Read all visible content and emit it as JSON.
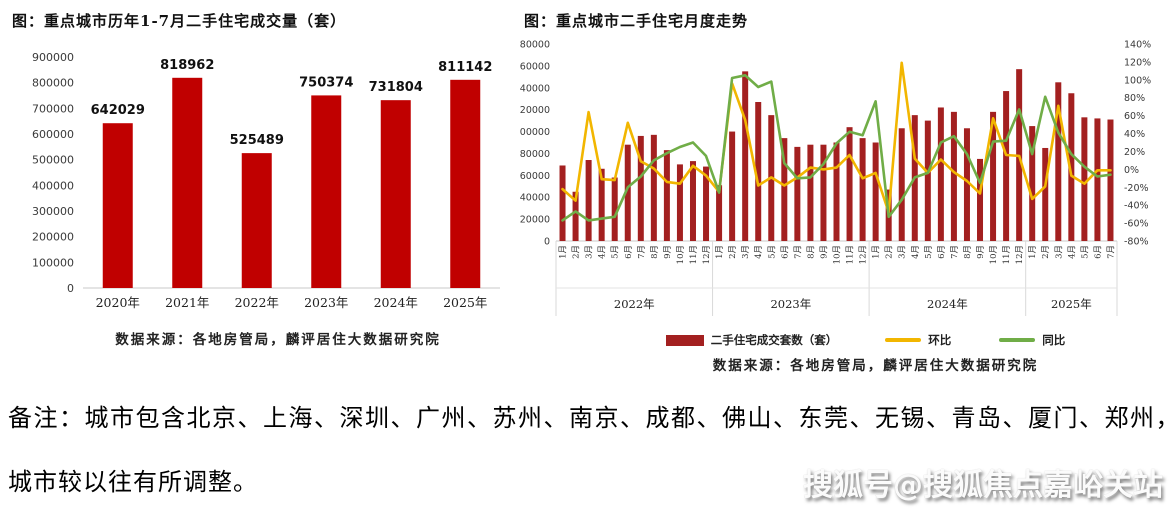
{
  "watermark": {
    "text": "搜狐号@搜狐焦点嘉峪关站"
  },
  "notes": {
    "line1": "备注：城市包含北京、上海、深圳、广州、苏州、南京、成都、佛山、东莞、无锡、青岛、厦门、郑州，",
    "line2": "城市较以往有所调整。"
  },
  "chart_data": [
    {
      "type": "bar",
      "title": "图：重点城市历年1-7月二手住宅成交量（套）",
      "source": "数据来源：各地房管局，麟评居住大数据研究院",
      "categories": [
        "2020年",
        "2021年",
        "2022年",
        "2023年",
        "2024年",
        "2025年"
      ],
      "values": [
        642029,
        818962,
        525489,
        750374,
        731804,
        811142
      ],
      "bar_color": "#c00000",
      "xlabel": "",
      "ylabel": "",
      "ylim": [
        0,
        900000
      ],
      "ytick_step": 100000,
      "grid": false,
      "value_labels": true
    },
    {
      "type": "combo",
      "title": "图：重点城市二手住宅月度走势",
      "source": "数据来源：各地房管局，麟评居住大数据研究院",
      "left_ylim": [
        0,
        180000
      ],
      "left_step": 20000,
      "right_ylim": [
        -80,
        140
      ],
      "right_step": 20,
      "grid": false,
      "legend_position": "bottom",
      "years": [
        {
          "label": "2022年",
          "months": [
            "1月",
            "2月",
            "3月",
            "4月",
            "5月",
            "6月",
            "7月",
            "8月",
            "9月",
            "10月",
            "11月",
            "12月"
          ]
        },
        {
          "label": "2023年",
          "months": [
            "1月",
            "2月",
            "3月",
            "4月",
            "5月",
            "6月",
            "7月",
            "8月",
            "9月",
            "10月",
            "11月",
            "12月"
          ]
        },
        {
          "label": "2024年",
          "months": [
            "1月",
            "2月",
            "3月",
            "4月",
            "5月",
            "6月",
            "7月",
            "8月",
            "9月",
            "10月",
            "11月",
            "12月"
          ]
        },
        {
          "label": "2025年",
          "months": [
            "1月",
            "2月",
            "3月",
            "4月",
            "5月",
            "6月",
            "7月"
          ]
        }
      ],
      "series": [
        {
          "name": "二手住宅成交套数（套）",
          "type": "bar",
          "axis": "left",
          "color": "#a32020",
          "values": [
            69000,
            45000,
            74000,
            66000,
            58000,
            88000,
            96000,
            97000,
            83000,
            70000,
            73000,
            68000,
            51000,
            100000,
            155000,
            127000,
            115000,
            94000,
            86000,
            88000,
            88000,
            90000,
            104000,
            94000,
            90000,
            47000,
            103000,
            115000,
            110000,
            122000,
            118000,
            103000,
            75000,
            118000,
            137000,
            157000,
            105000,
            85000,
            145000,
            135000,
            113000,
            112000,
            111000
          ]
        },
        {
          "name": "环比",
          "type": "line",
          "axis": "right",
          "color": "#f2b600",
          "values": [
            -22,
            -35,
            64,
            -11,
            -12,
            52,
            9,
            1,
            -14,
            -16,
            4,
            -7,
            -25,
            96,
            55,
            -18,
            -9,
            -18,
            -9,
            2,
            0,
            2,
            16,
            -10,
            -4,
            -48,
            119,
            12,
            -4,
            11,
            -3,
            -13,
            -27,
            57,
            16,
            15,
            -33,
            -19,
            71,
            -7,
            -16,
            -1,
            -1
          ]
        },
        {
          "name": "同比",
          "type": "line",
          "axis": "right",
          "color": "#70ad47",
          "values": [
            -57,
            -47,
            -57,
            -55,
            -53,
            -20,
            -8,
            10,
            18,
            25,
            30,
            15,
            -26,
            102,
            105,
            92,
            98,
            7,
            -10,
            -9,
            6,
            29,
            42,
            38,
            76,
            -53,
            -34,
            -9,
            -4,
            30,
            37,
            17,
            -15,
            31,
            32,
            67,
            17,
            81,
            41,
            17,
            3,
            -8,
            -6
          ]
        }
      ]
    }
  ]
}
